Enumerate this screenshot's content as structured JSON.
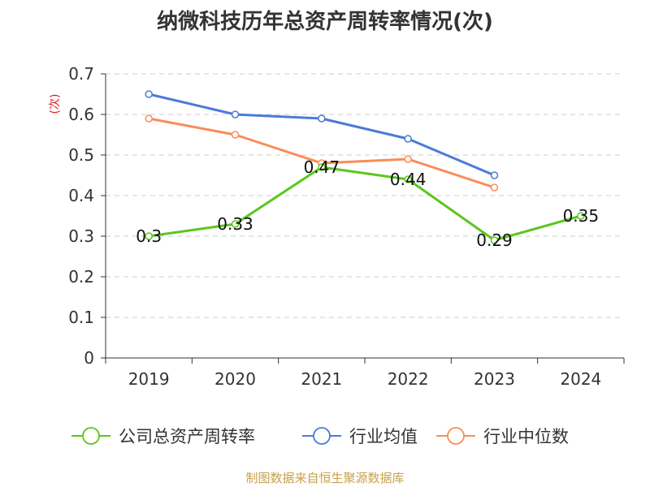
{
  "chart_data": {
    "type": "line",
    "title": "纳微科技历年总资产周转率情况(次)",
    "ylabel": "(次)",
    "xlabel": "",
    "categories": [
      "2019",
      "2020",
      "2021",
      "2022",
      "2023",
      "2024"
    ],
    "ylim": [
      0,
      0.7
    ],
    "yticks": [
      "0",
      "0.1",
      "0.2",
      "0.3",
      "0.4",
      "0.5",
      "0.6",
      "0.7"
    ],
    "grid": true,
    "legend_position": "bottom",
    "series": [
      {
        "name": "公司总资产周转率",
        "color": "#5dc61c",
        "values": [
          0.3,
          0.33,
          0.47,
          0.44,
          0.29,
          0.35
        ],
        "labels": [
          "0.3",
          "0.33",
          "0.47",
          "0.44",
          "0.29",
          "0.35"
        ]
      },
      {
        "name": "行业均值",
        "color": "#4a7bd8",
        "values": [
          0.65,
          0.6,
          0.59,
          0.54,
          0.45,
          null
        ]
      },
      {
        "name": "行业中位数",
        "color": "#f98d57",
        "values": [
          0.59,
          0.55,
          0.48,
          0.49,
          0.42,
          null
        ]
      }
    ]
  },
  "source": "制图数据来自恒生聚源数据库"
}
